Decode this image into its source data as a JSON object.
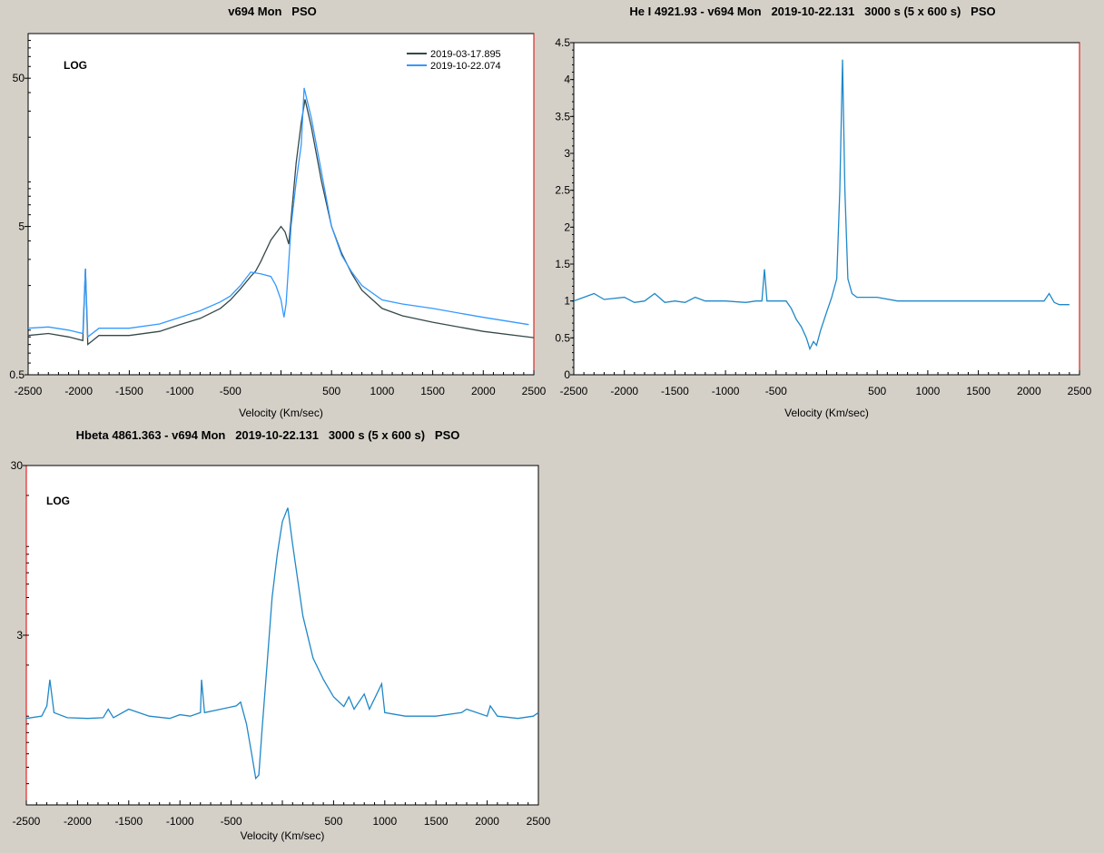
{
  "chart_data": [
    {
      "type": "line",
      "title": "v694 Mon   PSO",
      "xlabel": "Velocity (Km/sec)",
      "ylabel": "",
      "annotation": "LOG",
      "yscale": "log",
      "xlim": [
        -2500,
        2500
      ],
      "ylim": [
        0.5,
        100
      ],
      "xticks": [
        "-2500",
        "-2000",
        "-1500",
        "-1000",
        "-500",
        "500",
        "1000",
        "1500",
        "2000",
        "2500"
      ],
      "yticks": [
        "0.5",
        "5",
        "50"
      ],
      "legend": "top-right",
      "grid": false,
      "series": [
        {
          "name": "2019-03-17.895",
          "color": "#344848",
          "x": [
            -2500,
            -2300,
            -2100,
            -1960,
            -1934,
            -1910,
            -1800,
            -1500,
            -1200,
            -1000,
            -800,
            -600,
            -500,
            -400,
            -300,
            -250,
            -200,
            -100,
            0,
            40,
            77,
            120,
            150,
            200,
            238,
            300,
            400,
            500,
            600,
            700,
            800,
            1000,
            1200,
            1500,
            2000,
            2500
          ],
          "y": [
            0.92,
            0.95,
            0.9,
            0.85,
            2.6,
            0.8,
            0.92,
            0.92,
            0.98,
            1.09,
            1.2,
            1.4,
            1.6,
            1.9,
            2.3,
            2.5,
            2.9,
            4.05,
            5.0,
            4.6,
            3.8,
            8,
            13.4,
            25,
            36,
            23.5,
            10.1,
            5,
            3.3,
            2.4,
            1.86,
            1.4,
            1.25,
            1.13,
            0.98,
            0.89
          ]
        },
        {
          "name": "2019-10-22.074",
          "color": "#3399ff",
          "x": [
            -2500,
            -2300,
            -2100,
            -1960,
            -1934,
            -1910,
            -1800,
            -1500,
            -1200,
            -1000,
            -800,
            -600,
            -500,
            -400,
            -300,
            -200,
            -100,
            -50,
            0,
            30,
            50,
            100,
            150,
            200,
            229,
            300,
            400,
            500,
            600,
            700,
            800,
            1000,
            1200,
            1500,
            2000,
            2450
          ],
          "y": [
            1.03,
            1.05,
            1.0,
            0.95,
            2.6,
            0.9,
            1.03,
            1.03,
            1.1,
            1.22,
            1.35,
            1.55,
            1.7,
            2.0,
            2.46,
            2.4,
            2.3,
            2.0,
            1.6,
            1.22,
            1.5,
            5,
            10,
            17.8,
            43,
            27,
            11.6,
            5,
            3.2,
            2.46,
            2.0,
            1.6,
            1.5,
            1.4,
            1.22,
            1.09
          ]
        }
      ]
    },
    {
      "type": "line",
      "title": "He I 4921.93 - v694 Mon   2019-10-22.131   3000 s (5 x 600 s)   PSO",
      "xlabel": "Velocity (Km/sec)",
      "ylabel": "",
      "yscale": "linear",
      "xlim": [
        -2500,
        2500
      ],
      "ylim": [
        0,
        4.5
      ],
      "xticks": [
        "-2500",
        "-2000",
        "-1500",
        "-1000",
        "-500",
        "500",
        "1000",
        "1500",
        "2000",
        "2500"
      ],
      "yticks": [
        "0",
        "0.5",
        "1",
        "1.5",
        "2",
        "2.5",
        "3",
        "3.5",
        "4",
        "4.5"
      ],
      "grid": false,
      "series": [
        {
          "color": "#1f88c8",
          "x": [
            -2500,
            -2400,
            -2300,
            -2200,
            -2000,
            -1900,
            -1800,
            -1700,
            -1600,
            -1500,
            -1400,
            -1300,
            -1200,
            -1000,
            -800,
            -700,
            -640,
            -615,
            -590,
            -500,
            -400,
            -350,
            -300,
            -250,
            -200,
            -166,
            -130,
            -100,
            -60,
            0,
            50,
            100,
            130,
            157,
            180,
            210,
            250,
            300,
            500,
            700,
            1000,
            1500,
            2000,
            2150,
            2200,
            2250,
            2300,
            2400
          ],
          "y": [
            1.0,
            1.05,
            1.1,
            1.02,
            1.05,
            0.98,
            1.0,
            1.1,
            0.98,
            1.0,
            0.98,
            1.05,
            1.0,
            1.0,
            0.98,
            1.0,
            1.0,
            1.43,
            1.0,
            1.0,
            1.0,
            0.9,
            0.75,
            0.65,
            0.5,
            0.35,
            0.45,
            0.4,
            0.6,
            0.85,
            1.05,
            1.3,
            2.5,
            4.27,
            2.5,
            1.3,
            1.1,
            1.05,
            1.05,
            1.0,
            1.0,
            1.0,
            1.0,
            1.0,
            1.1,
            0.98,
            0.95,
            0.95
          ]
        }
      ]
    },
    {
      "type": "line",
      "title": "Hbeta 4861.363 - v694 Mon   2019-10-22.131   3000 s (5 x 600 s)   PSO",
      "xlabel": "Velocity (Km/sec)",
      "ylabel": "",
      "annotation": "LOG",
      "yscale": "log",
      "xlim": [
        -2500,
        2500
      ],
      "ylim": [
        0.3,
        30
      ],
      "xticks": [
        "-2500",
        "-2000",
        "-1500",
        "-1000",
        "-500",
        "500",
        "1000",
        "1500",
        "2000",
        "2500"
      ],
      "yticks": [
        "3",
        "30"
      ],
      "grid": false,
      "series": [
        {
          "color": "#1f88c8",
          "x": [
            -2500,
            -2350,
            -2300,
            -2270,
            -2230,
            -2100,
            -1900,
            -1750,
            -1700,
            -1650,
            -1500,
            -1300,
            -1100,
            -1000,
            -900,
            -800,
            -789,
            -760,
            -600,
            -450,
            -408,
            -350,
            -300,
            -260,
            -230,
            -200,
            -150,
            -100,
            -50,
            0,
            53,
            100,
            200,
            300,
            400,
            500,
            600,
            650,
            700,
            800,
            850,
            970,
            1000,
            1200,
            1500,
            1750,
            1800,
            2000,
            2030,
            2100,
            2300,
            2450,
            2500
          ],
          "y": [
            0.97,
            1.0,
            1.15,
            1.64,
            1.05,
            0.98,
            0.97,
            0.98,
            1.1,
            0.98,
            1.1,
            1.0,
            0.97,
            1.02,
            1.0,
            1.05,
            1.64,
            1.05,
            1.1,
            1.15,
            1.21,
            0.9,
            0.6,
            0.43,
            0.45,
            0.8,
            2.0,
            5,
            9,
            14,
            16.9,
            10.3,
            3.9,
            2.2,
            1.65,
            1.3,
            1.14,
            1.3,
            1.1,
            1.35,
            1.1,
            1.55,
            1.05,
            1.0,
            1.0,
            1.05,
            1.1,
            1.0,
            1.15,
            1.0,
            0.97,
            1.0,
            1.05
          ]
        }
      ]
    }
  ]
}
